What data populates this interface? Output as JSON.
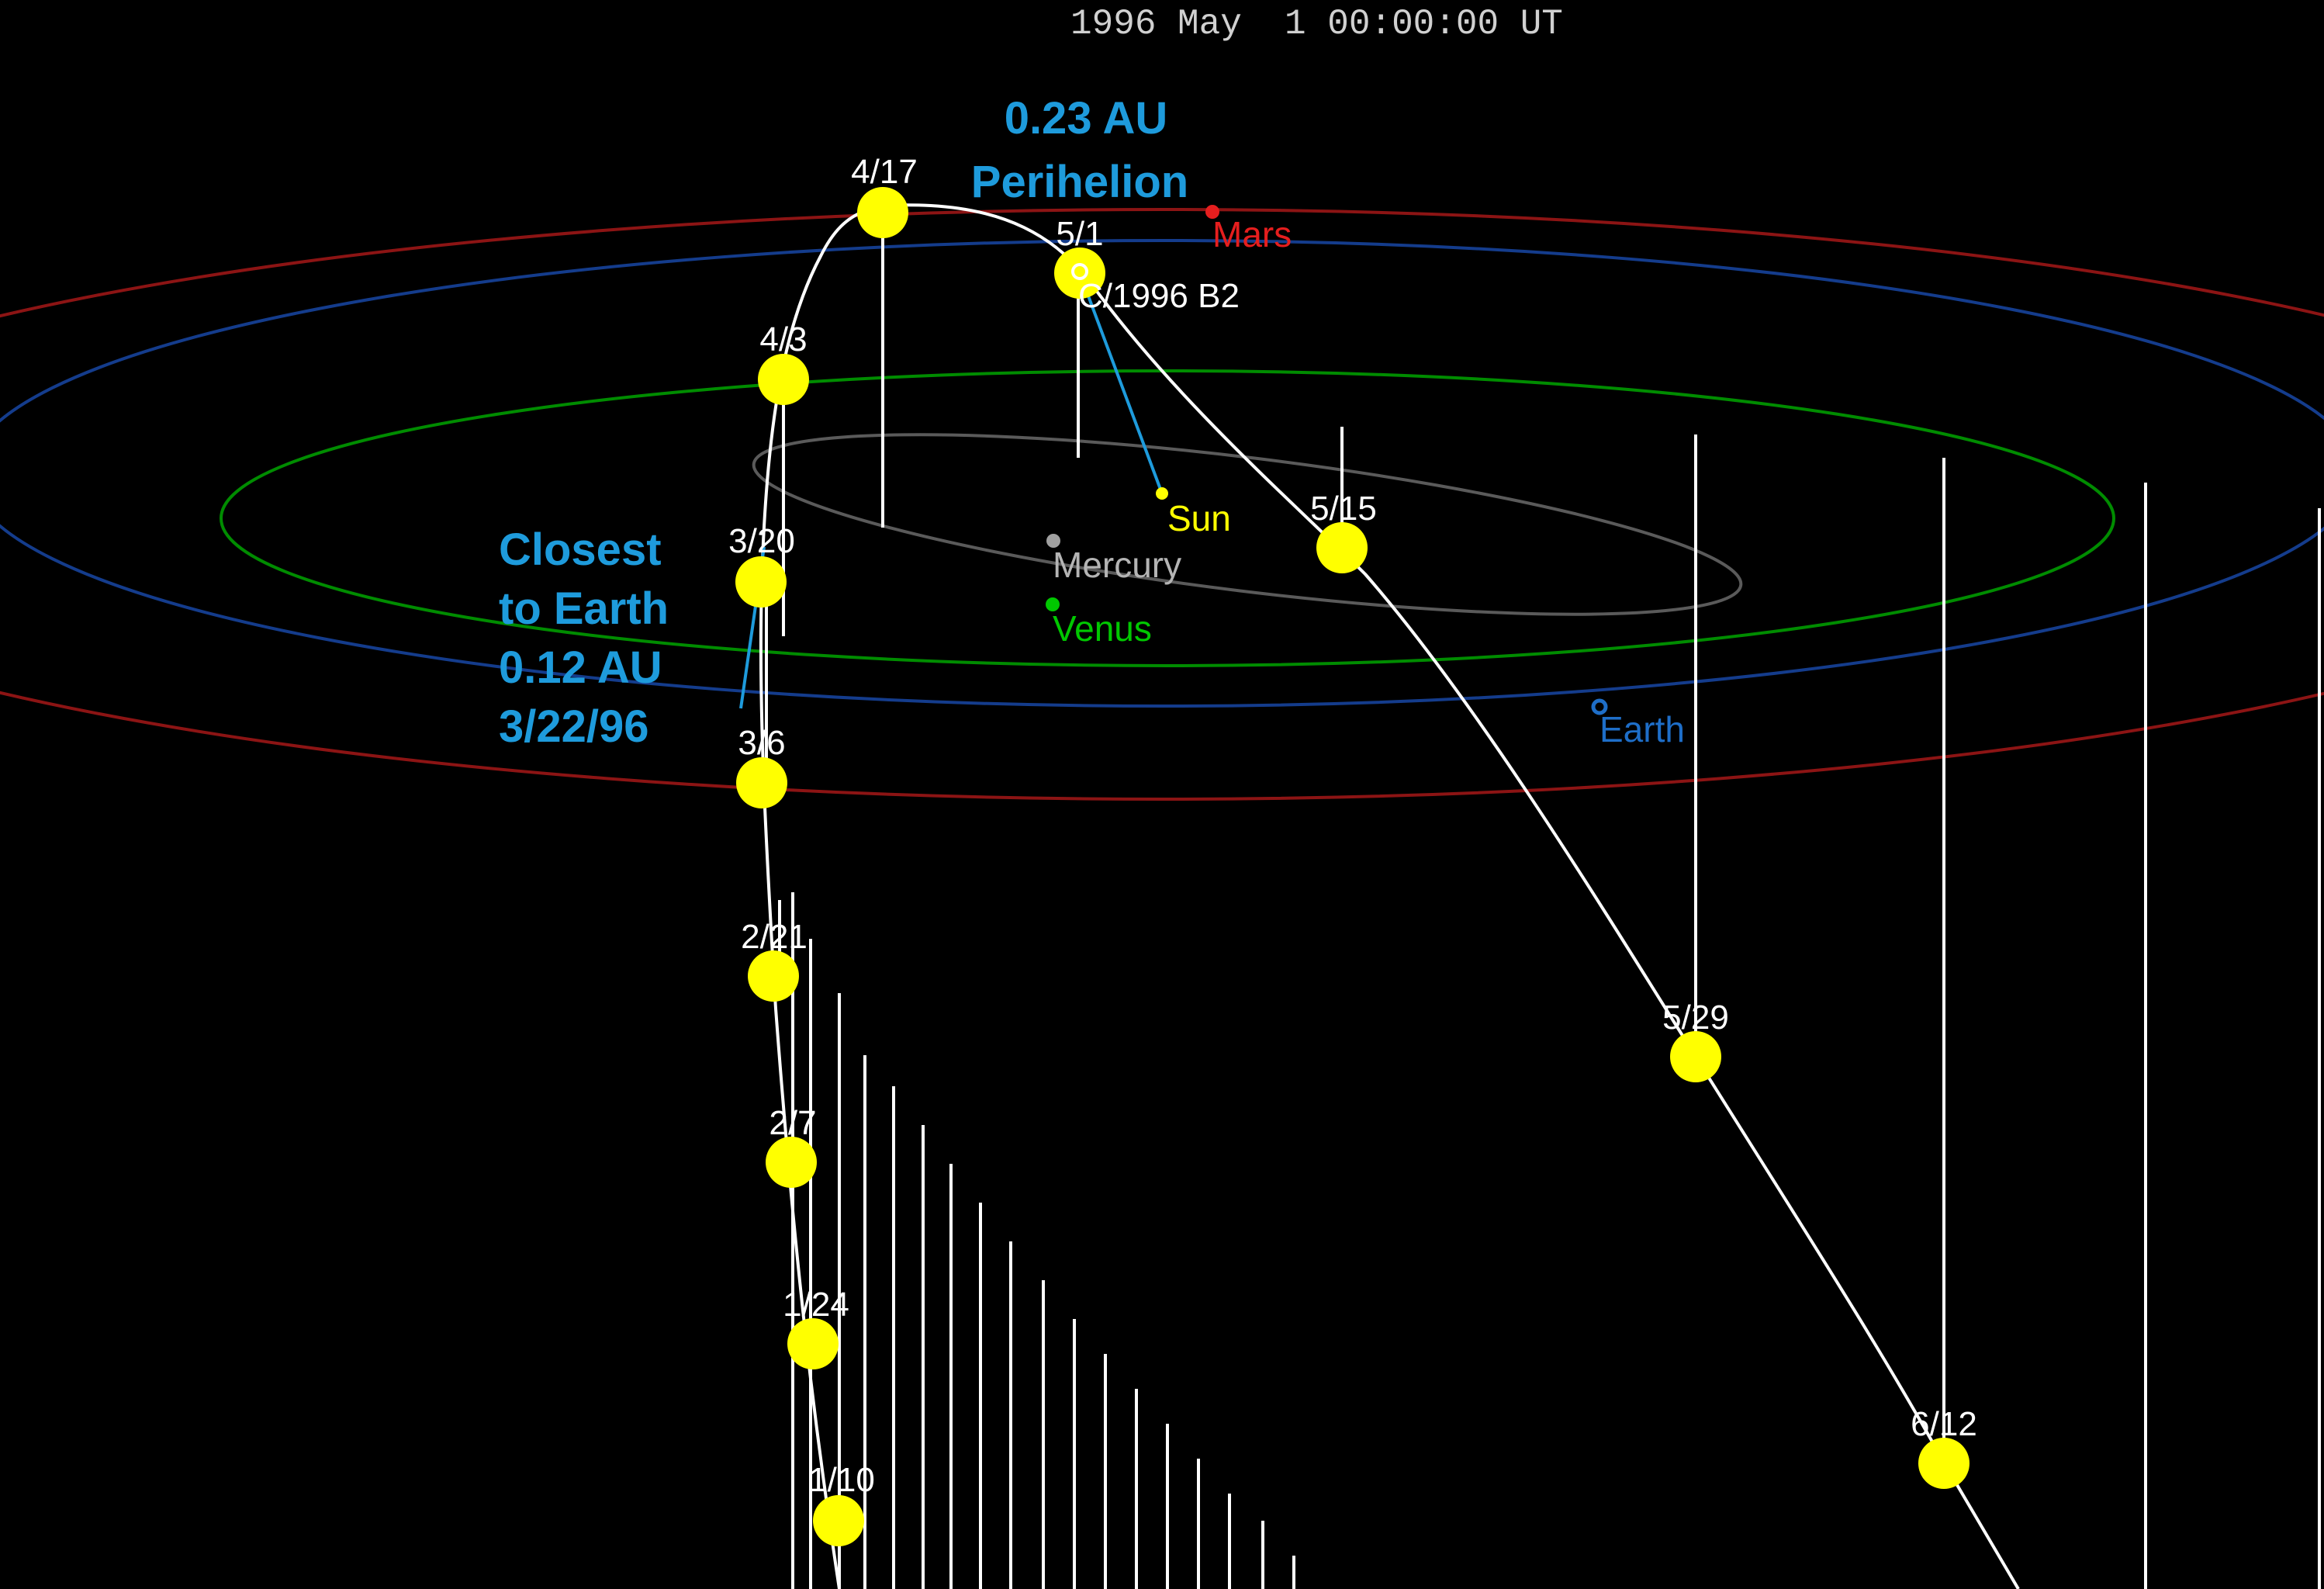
{
  "timestamp": "1996 May  1 00:00:00 UT",
  "comet_name": "C/1996 B2",
  "annotations": {
    "perihelion_line1": "0.23 AU",
    "perihelion_line2": "Perihelion",
    "closest_line1": "Closest",
    "closest_line2": "to Earth",
    "closest_line3": "0.12 AU",
    "closest_line4": "3/22/96"
  },
  "planets": {
    "sun": "Sun",
    "mercury": "Mercury",
    "venus": "Venus",
    "earth": "Earth",
    "mars": "Mars"
  },
  "comet_dates": [
    "1/10",
    "1/24",
    "2/7",
    "2/21",
    "3/6",
    "3/20",
    "4/3",
    "4/17",
    "5/1",
    "5/15",
    "5/29",
    "6/12"
  ],
  "colors": {
    "background": "#000000",
    "comet_path": "#ffffff",
    "comet_marker": "#ffff00",
    "annotation": "#1e9bdc",
    "sun": "#ffff00",
    "mercury": "#a0a0a0",
    "venus": "#00c800",
    "earth": "#1e6ec8",
    "mars": "#e61e1e",
    "mercury_orbit": "#5a5a5a",
    "venus_orbit": "#008c00",
    "earth_orbit": "#143c8c",
    "mars_orbit": "#8c1414"
  }
}
